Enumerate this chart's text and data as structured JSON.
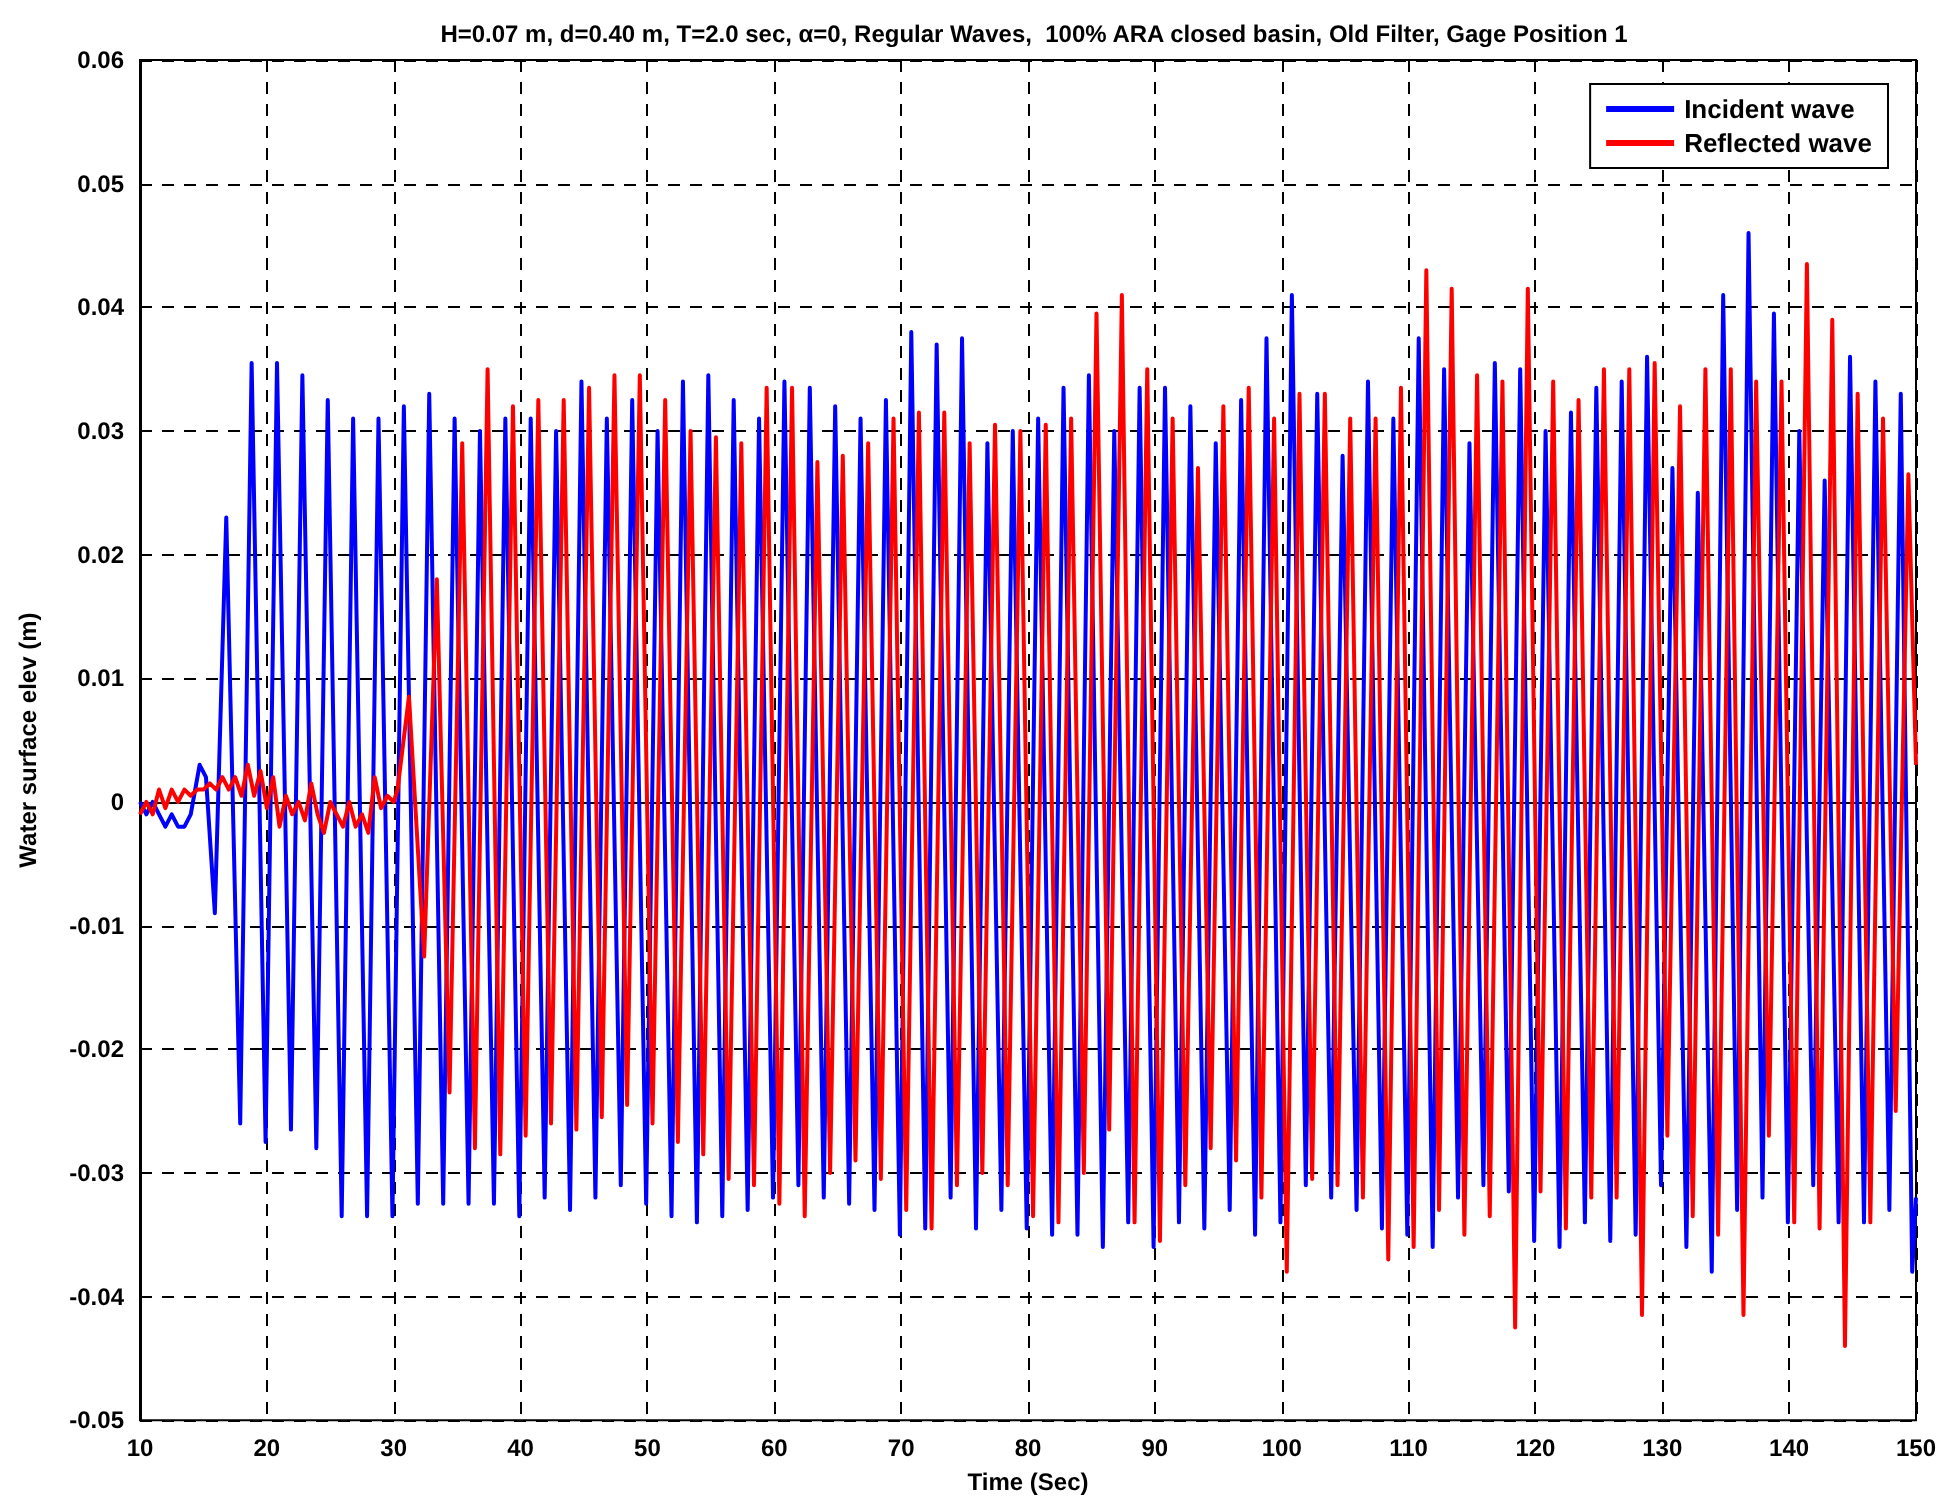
{
  "chart_data": {
    "type": "line",
    "title": "H=0.07 m, d=0.40 m, T=2.0 sec, α=0, Regular Waves,  100% ARA closed basin, Old Filter, Gage Position 1",
    "xlabel": "Time (Sec)",
    "ylabel": "Water surface elev (m)",
    "xlim": [
      10,
      150
    ],
    "xticks": [
      10,
      20,
      30,
      40,
      50,
      60,
      70,
      80,
      90,
      100,
      110,
      120,
      130,
      140,
      150
    ],
    "ylim": [
      -0.05,
      0.06
    ],
    "yticks": [
      -0.05,
      -0.04,
      -0.03,
      -0.02,
      -0.01,
      0,
      0.01,
      0.02,
      0.03,
      0.04,
      0.05,
      0.06
    ],
    "grid": true,
    "legend": "top right",
    "marker": "none",
    "line_style": "solid",
    "series": [
      {
        "name": "Incident wave",
        "color": "#0000ff",
        "x": [
          10,
          10.5,
          11,
          11.5,
          12,
          12.5,
          13,
          13.5,
          14,
          14.7,
          15.2,
          15.9,
          16.8,
          17.9,
          18.8,
          19.9,
          20.8,
          21.9,
          22.8,
          23.9,
          24.8,
          25.9,
          26.8,
          27.9,
          28.8,
          29.9,
          30.8,
          31.9,
          32.8,
          33.9,
          34.8,
          35.9,
          36.8,
          37.9,
          38.8,
          39.9,
          40.8,
          41.9,
          42.8,
          43.9,
          44.8,
          45.9,
          46.8,
          47.9,
          48.8,
          49.9,
          50.8,
          51.9,
          52.8,
          53.9,
          54.8,
          55.9,
          56.8,
          57.9,
          58.8,
          59.9,
          60.8,
          61.9,
          62.8,
          63.9,
          64.8,
          65.9,
          66.8,
          67.9,
          68.8,
          69.9,
          70.8,
          71.9,
          72.8,
          73.9,
          74.8,
          75.9,
          76.8,
          77.9,
          78.8,
          79.9,
          80.8,
          81.9,
          82.8,
          83.9,
          84.8,
          85.9,
          86.8,
          87.9,
          88.8,
          89.9,
          90.8,
          91.9,
          92.8,
          93.9,
          94.8,
          95.9,
          96.8,
          97.9,
          98.8,
          99.9,
          100.8,
          101.9,
          102.8,
          103.9,
          104.8,
          105.9,
          106.8,
          107.9,
          108.8,
          109.9,
          110.8,
          111.9,
          112.8,
          113.9,
          114.8,
          115.9,
          116.8,
          117.9,
          118.8,
          119.9,
          120.8,
          121.9,
          122.8,
          123.9,
          124.8,
          125.9,
          126.8,
          127.9,
          128.8,
          129.9,
          130.8,
          131.9,
          132.8,
          133.9,
          134.8,
          135.9,
          136.8,
          137.9,
          138.8,
          139.9,
          140.8,
          141.9,
          142.8,
          143.9,
          144.8,
          145.9,
          146.8,
          147.9,
          148.8,
          149.7,
          150
        ],
        "values": [
          0,
          -0.001,
          0,
          -0.001,
          -0.002,
          -0.001,
          -0.002,
          -0.002,
          -0.001,
          0.003,
          0.002,
          -0.009,
          0.023,
          -0.026,
          0.0355,
          -0.0275,
          0.0355,
          -0.0265,
          0.0345,
          -0.028,
          0.0325,
          -0.0335,
          0.031,
          -0.0335,
          0.031,
          -0.0335,
          0.032,
          -0.0325,
          0.033,
          -0.0325,
          0.031,
          -0.0325,
          0.03,
          -0.0325,
          0.031,
          -0.0335,
          0.031,
          -0.032,
          0.03,
          -0.033,
          0.034,
          -0.032,
          0.031,
          -0.031,
          0.0325,
          -0.0325,
          0.03,
          -0.0335,
          0.034,
          -0.034,
          0.0345,
          -0.0335,
          0.0325,
          -0.033,
          0.031,
          -0.032,
          0.034,
          -0.031,
          0.0335,
          -0.032,
          0.032,
          -0.0325,
          0.031,
          -0.033,
          0.0325,
          -0.035,
          0.038,
          -0.0345,
          0.037,
          -0.032,
          0.0375,
          -0.0345,
          0.029,
          -0.033,
          0.03,
          -0.0345,
          0.031,
          -0.035,
          0.0335,
          -0.035,
          0.0345,
          -0.036,
          0.03,
          -0.034,
          0.0335,
          -0.036,
          0.0335,
          -0.034,
          0.032,
          -0.0345,
          0.029,
          -0.033,
          0.0325,
          -0.035,
          0.0375,
          -0.034,
          0.041,
          -0.031,
          0.033,
          -0.032,
          0.028,
          -0.033,
          0.034,
          -0.0345,
          0.031,
          -0.035,
          0.0375,
          -0.036,
          0.035,
          -0.032,
          0.029,
          -0.031,
          0.0355,
          -0.0315,
          0.035,
          -0.0355,
          0.03,
          -0.036,
          0.0315,
          -0.034,
          0.0335,
          -0.0355,
          0.034,
          -0.035,
          0.036,
          -0.031,
          0.027,
          -0.036,
          0.025,
          -0.038,
          0.041,
          -0.033,
          0.046,
          -0.032,
          0.0395,
          -0.034,
          0.03,
          -0.031,
          0.026,
          -0.034,
          0.036,
          -0.034,
          0.034,
          -0.033,
          0.033,
          -0.038,
          -0.032
        ]
      },
      {
        "name": "Reflected wave",
        "color": "#ff0000",
        "x": [
          10,
          10.5,
          11,
          11.5,
          12,
          12.5,
          13,
          13.5,
          14,
          14.5,
          15,
          15.5,
          16,
          16.5,
          17,
          17.5,
          18,
          18.5,
          19,
          19.5,
          20,
          20.5,
          21,
          21.5,
          22,
          22.5,
          23,
          23.5,
          24,
          24.5,
          25,
          25.5,
          26,
          26.5,
          27,
          27.5,
          28,
          28.5,
          29,
          29.5,
          30,
          30.3,
          31.2,
          32.4,
          33.4,
          34.4,
          35.4,
          36.4,
          37.4,
          38.4,
          39.4,
          40.4,
          41.4,
          42.4,
          43.4,
          44.4,
          45.4,
          46.4,
          47.4,
          48.4,
          49.4,
          50.4,
          51.4,
          52.4,
          53.4,
          54.4,
          55.4,
          56.4,
          57.4,
          58.4,
          59.4,
          60.4,
          61.4,
          62.4,
          63.4,
          64.4,
          65.4,
          66.4,
          67.4,
          68.4,
          69.4,
          70.4,
          71.4,
          72.4,
          73.4,
          74.4,
          75.4,
          76.4,
          77.4,
          78.4,
          79.4,
          80.4,
          81.4,
          82.4,
          83.4,
          84.4,
          85.4,
          86.4,
          87.4,
          88.4,
          89.4,
          90.4,
          91.4,
          92.4,
          93.4,
          94.4,
          95.4,
          96.4,
          97.4,
          98.4,
          99.4,
          100.4,
          101.4,
          102.4,
          103.4,
          104.4,
          105.4,
          106.4,
          107.4,
          108.4,
          109.4,
          110.4,
          111.4,
          112.4,
          113.4,
          114.4,
          115.4,
          116.4,
          117.4,
          118.4,
          119.4,
          120.4,
          121.4,
          122.4,
          123.4,
          124.4,
          125.4,
          126.4,
          127.4,
          128.4,
          129.4,
          130.4,
          131.4,
          132.4,
          133.4,
          134.4,
          135.4,
          136.4,
          137.4,
          138.4,
          139.4,
          140.4,
          141.4,
          142.4,
          143.4,
          144.4,
          145.4,
          146.4,
          147.4,
          148.4,
          149.4,
          150
        ],
        "values": [
          -0.001,
          0,
          -0.001,
          0.001,
          -0.0005,
          0.001,
          0,
          0.001,
          0.0005,
          0.001,
          0.001,
          0.0015,
          0.001,
          0.002,
          0.001,
          0.002,
          0.0005,
          0.003,
          0.0005,
          0.0025,
          -0.0005,
          0.002,
          -0.002,
          0.0005,
          -0.001,
          0,
          -0.0015,
          0.0015,
          -0.001,
          -0.0025,
          0,
          -0.001,
          -0.002,
          0,
          -0.002,
          -0.001,
          -0.0025,
          0.002,
          -0.0005,
          0.0005,
          0,
          0.001,
          0.0085,
          -0.0125,
          0.018,
          -0.0235,
          0.029,
          -0.028,
          0.035,
          -0.0285,
          0.032,
          -0.027,
          0.0325,
          -0.026,
          0.0325,
          -0.0265,
          0.0335,
          -0.0255,
          0.0345,
          -0.0245,
          0.0345,
          -0.026,
          0.0325,
          -0.0275,
          0.03,
          -0.0285,
          0.0295,
          -0.0305,
          0.029,
          -0.031,
          0.0335,
          -0.0325,
          0.0335,
          -0.0335,
          0.0275,
          -0.03,
          0.028,
          -0.029,
          0.029,
          -0.0305,
          0.031,
          -0.033,
          0.0315,
          -0.0345,
          0.0315,
          -0.031,
          0.029,
          -0.03,
          0.0305,
          -0.031,
          0.03,
          -0.0335,
          0.0305,
          -0.034,
          0.031,
          -0.03,
          0.0395,
          -0.0265,
          0.041,
          -0.034,
          0.035,
          -0.0355,
          0.031,
          -0.031,
          0.027,
          -0.028,
          0.032,
          -0.029,
          0.0335,
          -0.032,
          0.031,
          -0.038,
          0.033,
          -0.0305,
          0.033,
          -0.031,
          0.031,
          -0.032,
          0.031,
          -0.037,
          0.0335,
          -0.036,
          0.043,
          -0.033,
          0.0415,
          -0.035,
          0.0345,
          -0.0335,
          0.034,
          -0.0425,
          0.0415,
          -0.0315,
          0.034,
          -0.0345,
          0.0325,
          -0.032,
          0.035,
          -0.032,
          0.035,
          -0.0415,
          0.0355,
          -0.027,
          0.032,
          -0.0335,
          0.035,
          -0.035,
          0.035,
          -0.0415,
          0.034,
          -0.027,
          0.034,
          -0.034,
          0.0435,
          -0.0345,
          0.039,
          -0.044,
          0.033,
          -0.034,
          0.031,
          -0.025,
          0.0265,
          0.003
        ]
      }
    ]
  }
}
